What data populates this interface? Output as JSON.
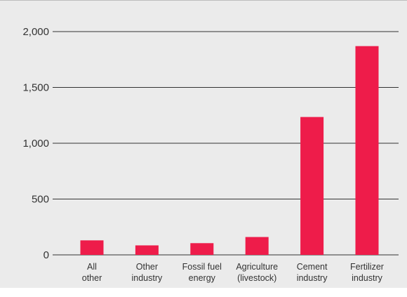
{
  "chart_data": {
    "type": "bar",
    "title": "",
    "xlabel": "",
    "ylabel": "",
    "categories": [
      [
        "All",
        "other"
      ],
      [
        "Other",
        "industry"
      ],
      [
        "Fossil fuel",
        "energy"
      ],
      [
        "Agriculture",
        "(livestock)"
      ],
      [
        "Cement",
        "industry"
      ],
      [
        "Fertilizer",
        "industry"
      ]
    ],
    "values": [
      130,
      85,
      105,
      160,
      1235,
      1870
    ],
    "ylim": [
      0,
      2000
    ],
    "yticks": [
      0,
      500,
      1000,
      1500,
      2000
    ],
    "ytick_labels": [
      "0",
      "500",
      "1,000",
      "1,500",
      "2,000"
    ],
    "grid": true,
    "bar_color": "#ee1c4a",
    "grid_color": "#333333",
    "background_color": "#ebebeb"
  }
}
